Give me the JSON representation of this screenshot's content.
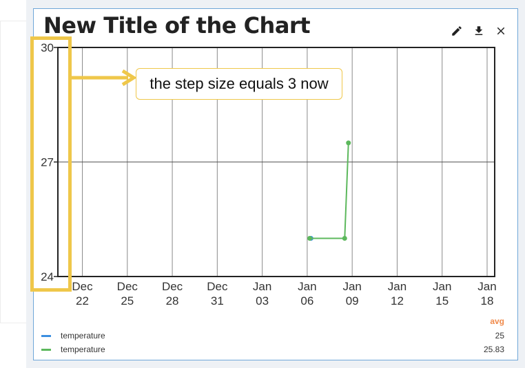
{
  "window": {
    "title": "New Title of the Chart",
    "actions": [
      {
        "label": "edit",
        "icon": "pencil-icon"
      },
      {
        "label": "download",
        "icon": "download-icon"
      },
      {
        "label": "close",
        "icon": "close-icon"
      }
    ]
  },
  "annotation": {
    "text": "the step size equals 3 now",
    "color": "#efc74a"
  },
  "legend": {
    "header": "avg",
    "header_color": "#f08a4b",
    "items": [
      {
        "name": "temperature",
        "avg": "25",
        "color": "#3b8fe0"
      },
      {
        "name": "temperature",
        "avg": "25.83",
        "color": "#5cb85c"
      }
    ]
  },
  "chart_data": {
    "type": "line",
    "title": "New Title of the Chart",
    "y_ticks": [
      "30",
      "27",
      "24"
    ],
    "ylim": [
      24,
      30
    ],
    "y_step": 3,
    "x_tick_dates": [
      "2022-12-22",
      "2022-12-25",
      "2022-12-28",
      "2022-12-31",
      "2023-01-03",
      "2023-01-06",
      "2023-01-09",
      "2023-01-12",
      "2023-01-15",
      "2023-01-18"
    ],
    "x_ticks": [
      {
        "month": "Dec",
        "day": "22"
      },
      {
        "month": "Dec",
        "day": "25"
      },
      {
        "month": "Dec",
        "day": "28"
      },
      {
        "month": "Dec",
        "day": "31"
      },
      {
        "month": "Jan",
        "day": "03"
      },
      {
        "month": "Jan",
        "day": "06"
      },
      {
        "month": "Jan",
        "day": "09"
      },
      {
        "month": "Jan",
        "day": "12"
      },
      {
        "month": "Jan",
        "day": "15"
      },
      {
        "month": "Jan",
        "day": "18"
      }
    ],
    "xlim": [
      "2022-12-20",
      "2023-01-18"
    ],
    "grid": true,
    "series": [
      {
        "name": "temperature",
        "color": "#3b8fe0",
        "points": [
          {
            "x": "2023-01-06T06:00",
            "y": 25
          }
        ]
      },
      {
        "name": "temperature",
        "color": "#5cb85c",
        "points": [
          {
            "x": "2023-01-06T04:00",
            "y": 25
          },
          {
            "x": "2023-01-08T12:00",
            "y": 25
          },
          {
            "x": "2023-01-08T18:00",
            "y": 27.5
          }
        ]
      }
    ]
  }
}
